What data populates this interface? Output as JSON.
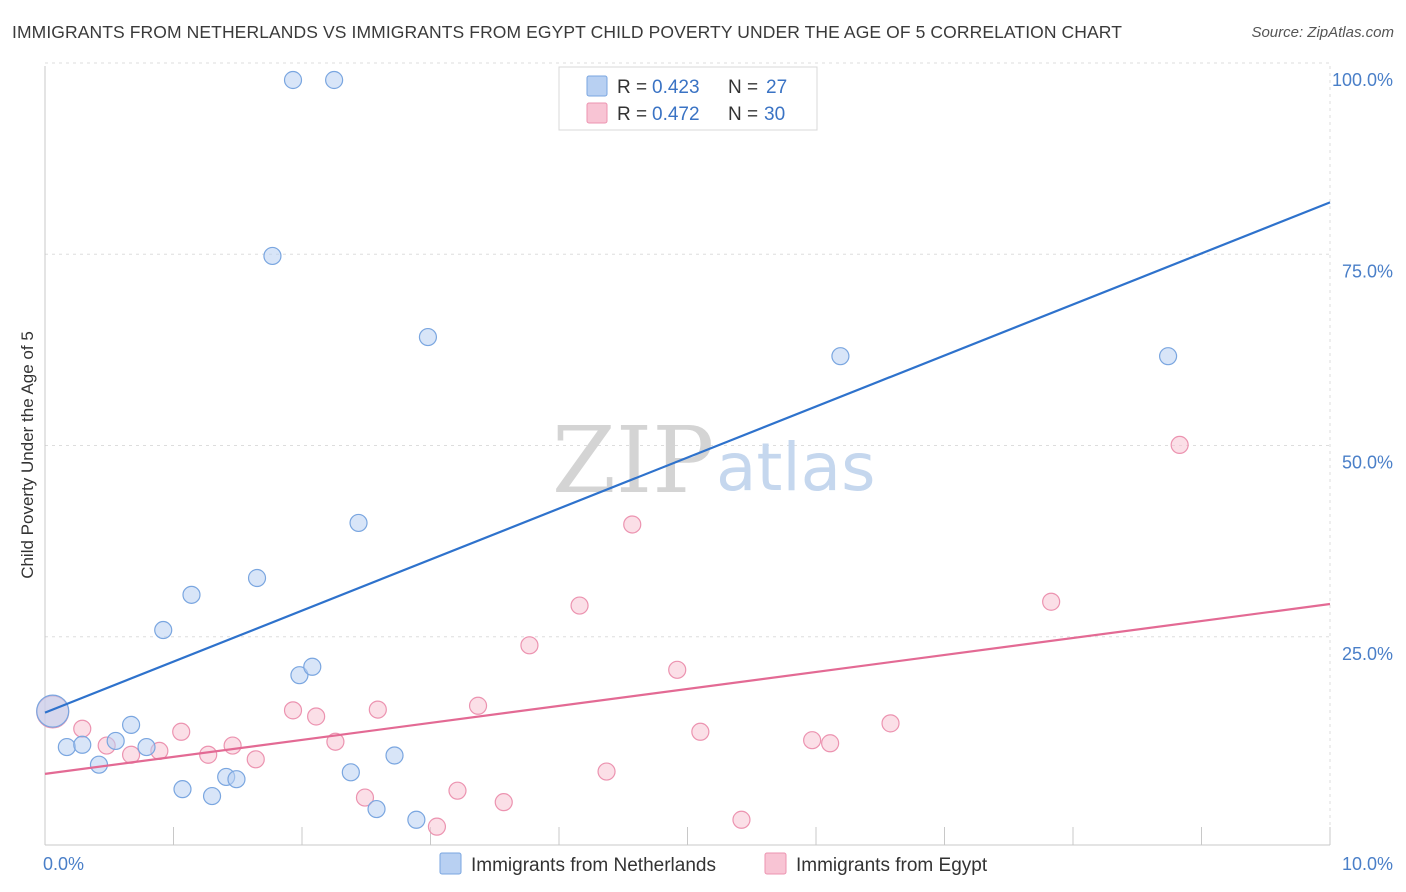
{
  "title": "IMMIGRANTS FROM NETHERLANDS VS IMMIGRANTS FROM EGYPT CHILD POVERTY UNDER THE AGE OF 5 CORRELATION CHART",
  "source": "Source: ZipAtlas.com",
  "watermark": {
    "zip": "ZIP",
    "atlas": "atlas"
  },
  "colors": {
    "blue_fill": "#b8d0f2",
    "blue_stroke": "#7aa6e0",
    "blue_line": "#2e72cc",
    "pink_fill": "#f8c4d4",
    "pink_stroke": "#ec93b0",
    "pink_line": "#e36a94",
    "grid": "#dddddd",
    "axis_text": "#4a7fc8"
  },
  "legend": [
    {
      "r_label": "R = ",
      "r_value": "0.423",
      "n_label": "N = ",
      "n_value": "27"
    },
    {
      "r_label": "R = ",
      "r_value": "0.472",
      "n_label": "N = ",
      "n_value": "30"
    }
  ],
  "chart_data": {
    "type": "scatter",
    "title": "IMMIGRANTS FROM NETHERLANDS VS IMMIGRANTS FROM EGYPT CHILD POVERTY UNDER THE AGE OF 5 CORRELATION CHART",
    "xlabel": "",
    "ylabel": "Child Poverty Under the Age of 5",
    "xlim": [
      0,
      10
    ],
    "ylim": [
      0,
      100
    ],
    "x_tick_labels": [
      "0.0%",
      "10.0%"
    ],
    "y_ticks": [
      25,
      50,
      75,
      100
    ],
    "y_tick_labels": [
      "25.0%",
      "50.0%",
      "75.0%",
      "100.0%"
    ],
    "grid": true,
    "legend_position": "top-center",
    "series": [
      {
        "name": "Immigrants from Netherlands",
        "color": "blue",
        "R": 0.423,
        "N": 27,
        "trend": {
          "x": [
            0.0,
            10.0
          ],
          "y": [
            17.3,
            84.0
          ]
        },
        "points": [
          {
            "x": 0.06,
            "y": 17.5,
            "size": "large"
          },
          {
            "x": 0.17,
            "y": 12.8
          },
          {
            "x": 0.29,
            "y": 13.1
          },
          {
            "x": 0.42,
            "y": 10.5
          },
          {
            "x": 0.55,
            "y": 13.6
          },
          {
            "x": 0.67,
            "y": 15.7
          },
          {
            "x": 0.79,
            "y": 12.8
          },
          {
            "x": 0.92,
            "y": 28.1
          },
          {
            "x": 1.07,
            "y": 7.3
          },
          {
            "x": 1.14,
            "y": 32.7
          },
          {
            "x": 1.3,
            "y": 6.4
          },
          {
            "x": 1.41,
            "y": 8.9
          },
          {
            "x": 1.49,
            "y": 8.6
          },
          {
            "x": 1.65,
            "y": 34.9
          },
          {
            "x": 1.77,
            "y": 77.0
          },
          {
            "x": 1.93,
            "y": 100.0
          },
          {
            "x": 1.98,
            "y": 22.2
          },
          {
            "x": 2.08,
            "y": 23.3
          },
          {
            "x": 2.25,
            "y": 100.0
          },
          {
            "x": 2.38,
            "y": 9.5
          },
          {
            "x": 2.44,
            "y": 42.1
          },
          {
            "x": 2.58,
            "y": 4.7
          },
          {
            "x": 2.72,
            "y": 11.7
          },
          {
            "x": 2.89,
            "y": 3.3
          },
          {
            "x": 2.98,
            "y": 66.4
          },
          {
            "x": 6.19,
            "y": 63.9
          },
          {
            "x": 8.74,
            "y": 63.9
          }
        ]
      },
      {
        "name": "Immigrants from Egypt",
        "color": "pink",
        "R": 0.472,
        "N": 30,
        "trend": {
          "x": [
            0.0,
            10.0
          ],
          "y": [
            9.3,
            31.5
          ]
        },
        "points": [
          {
            "x": 0.06,
            "y": 17.4,
            "size": "large"
          },
          {
            "x": 0.29,
            "y": 15.2
          },
          {
            "x": 0.48,
            "y": 13.0
          },
          {
            "x": 0.67,
            "y": 11.8
          },
          {
            "x": 0.89,
            "y": 12.3
          },
          {
            "x": 1.06,
            "y": 14.8
          },
          {
            "x": 1.27,
            "y": 11.8
          },
          {
            "x": 1.46,
            "y": 13.0
          },
          {
            "x": 1.64,
            "y": 11.2
          },
          {
            "x": 1.93,
            "y": 17.6
          },
          {
            "x": 2.11,
            "y": 16.8
          },
          {
            "x": 2.26,
            "y": 13.5
          },
          {
            "x": 2.49,
            "y": 6.2
          },
          {
            "x": 2.59,
            "y": 17.7
          },
          {
            "x": 3.05,
            "y": 2.4
          },
          {
            "x": 3.21,
            "y": 7.1
          },
          {
            "x": 3.37,
            "y": 18.2
          },
          {
            "x": 3.57,
            "y": 5.6
          },
          {
            "x": 3.77,
            "y": 26.1
          },
          {
            "x": 4.16,
            "y": 31.3
          },
          {
            "x": 4.37,
            "y": 9.6
          },
          {
            "x": 4.57,
            "y": 41.9
          },
          {
            "x": 4.92,
            "y": 22.9
          },
          {
            "x": 5.1,
            "y": 14.8
          },
          {
            "x": 5.42,
            "y": 3.3
          },
          {
            "x": 5.97,
            "y": 13.7
          },
          {
            "x": 6.11,
            "y": 13.3
          },
          {
            "x": 6.58,
            "y": 15.9
          },
          {
            "x": 7.83,
            "y": 31.8
          },
          {
            "x": 8.83,
            "y": 52.3
          }
        ]
      }
    ]
  }
}
